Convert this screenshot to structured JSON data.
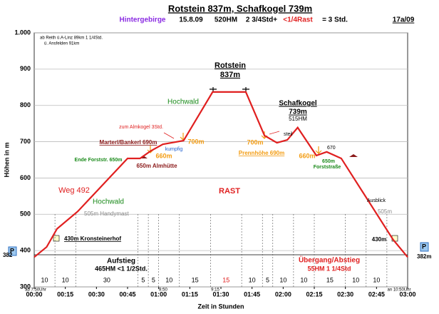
{
  "chart_data": {
    "type": "line",
    "title": "Rotstein 837m, Schafkogel 739m",
    "subtitle": [
      "Hintergebirge",
      "15.8.09",
      "520HM",
      "2 3/4Std+",
      "<1/4Rast",
      "= 3 Std."
    ],
    "code": "17a/09",
    "y_label": "Höhen in m",
    "x_label": "Zeit in Stunden",
    "color": "#e02020",
    "x": [
      0,
      6,
      11,
      21,
      45,
      51,
      56,
      62,
      72,
      86,
      102,
      111,
      117,
      122,
      127,
      136,
      141,
      148,
      173,
      180
    ],
    "values": [
      382,
      410,
      460,
      508,
      654,
      654,
      674,
      693,
      703,
      837,
      837,
      717,
      697,
      705,
      739,
      662,
      672,
      654,
      430,
      382
    ],
    "xlim": [
      0,
      180
    ],
    "ylim": [
      300,
      1000
    ],
    "xticks": [
      {
        "value": 0,
        "label": "00:00"
      },
      {
        "value": 15,
        "label": "00:15"
      },
      {
        "value": 30,
        "label": "00:30"
      },
      {
        "value": 45,
        "label": "00:45"
      },
      {
        "value": 60,
        "label": "01:00"
      },
      {
        "value": 75,
        "label": "01:15"
      },
      {
        "value": 90,
        "label": "01:30"
      },
      {
        "value": 105,
        "label": "01:45"
      },
      {
        "value": 120,
        "label": "02:00"
      },
      {
        "value": 135,
        "label": "02:15"
      },
      {
        "value": 150,
        "label": "02:30"
      },
      {
        "value": 165,
        "label": "02:45"
      },
      {
        "value": 180,
        "label": "03:00"
      }
    ],
    "yticks": [
      300,
      400,
      500,
      600,
      700,
      800,
      900,
      {
        "value": 1000,
        "label": "1.000"
      }
    ],
    "grid": true,
    "segments": [
      10,
      10,
      30,
      5,
      5,
      10,
      15,
      15,
      10,
      5,
      10,
      10,
      15,
      10,
      10
    ],
    "annotations": [
      "ab Reith ü.A-Linz 89km 1 1/4Std.",
      "ü. Ansfelden 91km",
      "Rotstein",
      "837m",
      "Schafkogel",
      "739m",
      "515HM",
      "Hochwald",
      "zum Almkogel 3Std.",
      "Marterl/Bankerl 690m",
      "kumpfig",
      "700m",
      "660m",
      "650m Almhütte",
      "Ende Forststr. 650m",
      "Weg 492",
      "Hochwald",
      "505m Handymast",
      "430m Kronsteinerhof",
      "RAST",
      "steil",
      "700m",
      "Prennhöhe 690m",
      "660m",
      "670",
      "650m",
      "Forststraße",
      "Ausblick",
      "505m",
      "430m",
      "Aufstieg",
      "465HM  <1 1/2Std.",
      "Übergang/Abstieg",
      "55HM   1 1/4Std",
      "ab 7:50Uhr",
      "8:50",
      "9:15",
      "an 10:50Uhr",
      "P",
      "382",
      "P",
      "382m"
    ]
  }
}
